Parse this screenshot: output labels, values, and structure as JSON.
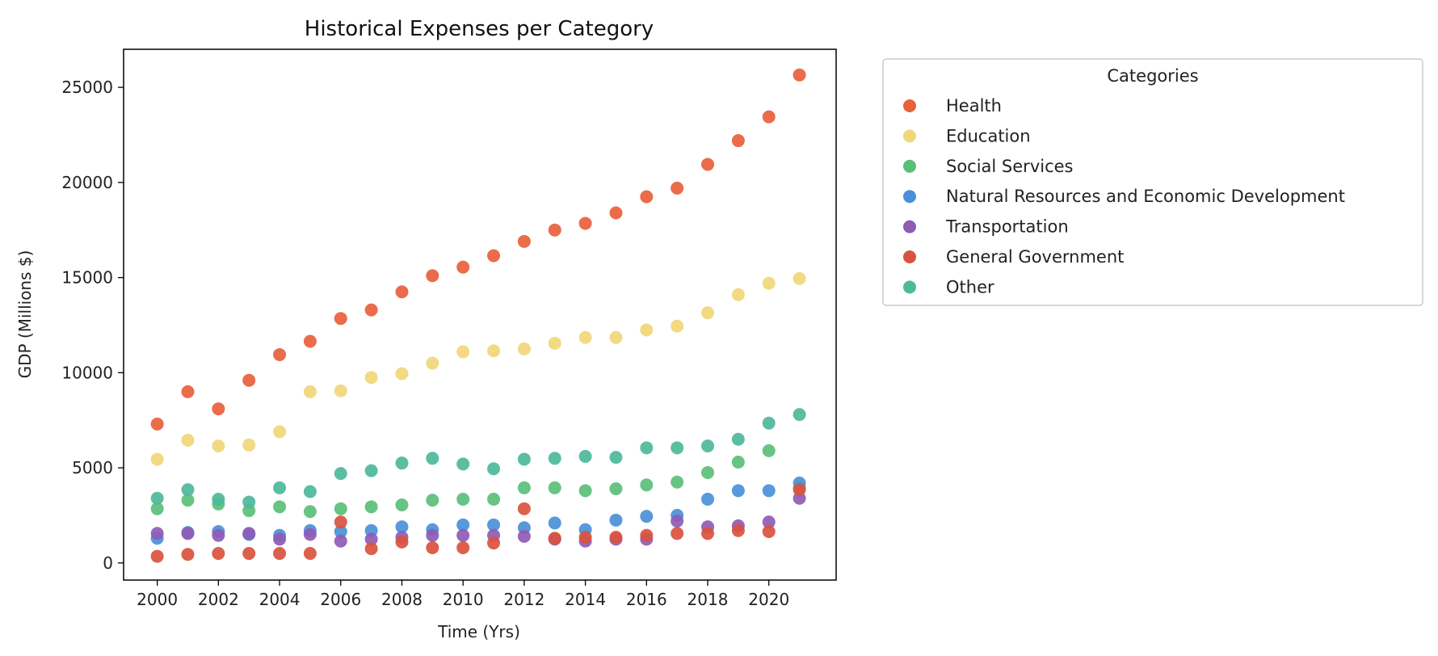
{
  "chart_data": {
    "type": "scatter",
    "title": "Historical Expenses per Category",
    "xlabel": "Time (Yrs)",
    "ylabel": "GDP (Millions $)",
    "xlim": [
      1998.9,
      2022.2
    ],
    "ylim": [
      -900,
      27000
    ],
    "xticks": [
      2000,
      2002,
      2004,
      2006,
      2008,
      2010,
      2012,
      2014,
      2016,
      2018,
      2020
    ],
    "yticks": [
      0,
      5000,
      10000,
      15000,
      20000,
      25000
    ],
    "grid": false,
    "legend": {
      "title": "Categories",
      "placement": "outside-top-right"
    },
    "x": [
      2000,
      2001,
      2002,
      2003,
      2004,
      2005,
      2006,
      2007,
      2008,
      2009,
      2010,
      2011,
      2012,
      2013,
      2014,
      2015,
      2016,
      2017,
      2018,
      2019,
      2020,
      2021
    ],
    "series": [
      {
        "name": "Health",
        "color": "#e8603c",
        "values": [
          7300,
          9000,
          8100,
          9600,
          10950,
          11650,
          12850,
          13300,
          14250,
          15100,
          15550,
          16150,
          16900,
          17500,
          17850,
          18400,
          19250,
          19700,
          20950,
          22200,
          23450,
          25650
        ]
      },
      {
        "name": "Education",
        "color": "#f1d77a",
        "values": [
          5450,
          6450,
          6150,
          6200,
          6900,
          9000,
          9050,
          9750,
          9950,
          10500,
          11100,
          11150,
          11250,
          11550,
          11850,
          11850,
          12250,
          12450,
          13150,
          14100,
          14700,
          14950
        ]
      },
      {
        "name": "Social Services",
        "color": "#5bbf7a",
        "values": [
          2850,
          3300,
          3100,
          2750,
          2950,
          2700,
          2850,
          2950,
          3050,
          3300,
          3350,
          3350,
          3950,
          3950,
          3800,
          3900,
          4100,
          4250,
          4750,
          5300,
          5900,
          3950
        ]
      },
      {
        "name": "Natural Resources and Economic Development",
        "color": "#4a90d9",
        "values": [
          1300,
          1600,
          1650,
          1500,
          1450,
          1700,
          1650,
          1700,
          1900,
          1750,
          2000,
          2000,
          1850,
          2100,
          1750,
          2250,
          2450,
          2500,
          3350,
          3800,
          3800,
          4200
        ]
      },
      {
        "name": "Transportation",
        "color": "#8e5bb5",
        "values": [
          1550,
          1550,
          1450,
          1550,
          1250,
          1500,
          1150,
          1250,
          1350,
          1450,
          1450,
          1450,
          1400,
          1250,
          1150,
          1250,
          1250,
          2200,
          1900,
          1950,
          2150,
          3400
        ]
      },
      {
        "name": "General Government",
        "color": "#d9533e",
        "values": [
          350,
          450,
          500,
          500,
          500,
          500,
          2150,
          750,
          1100,
          800,
          800,
          1050,
          2850,
          1300,
          1350,
          1350,
          1450,
          1550,
          1550,
          1700,
          1650,
          3850
        ]
      },
      {
        "name": "Other",
        "color": "#4db89a",
        "values": [
          3400,
          3850,
          3350,
          3200,
          3950,
          3750,
          4700,
          4850,
          5250,
          5500,
          5200,
          4950,
          5450,
          5500,
          5600,
          5550,
          6050,
          6050,
          6150,
          6500,
          7350,
          7800
        ]
      }
    ]
  }
}
